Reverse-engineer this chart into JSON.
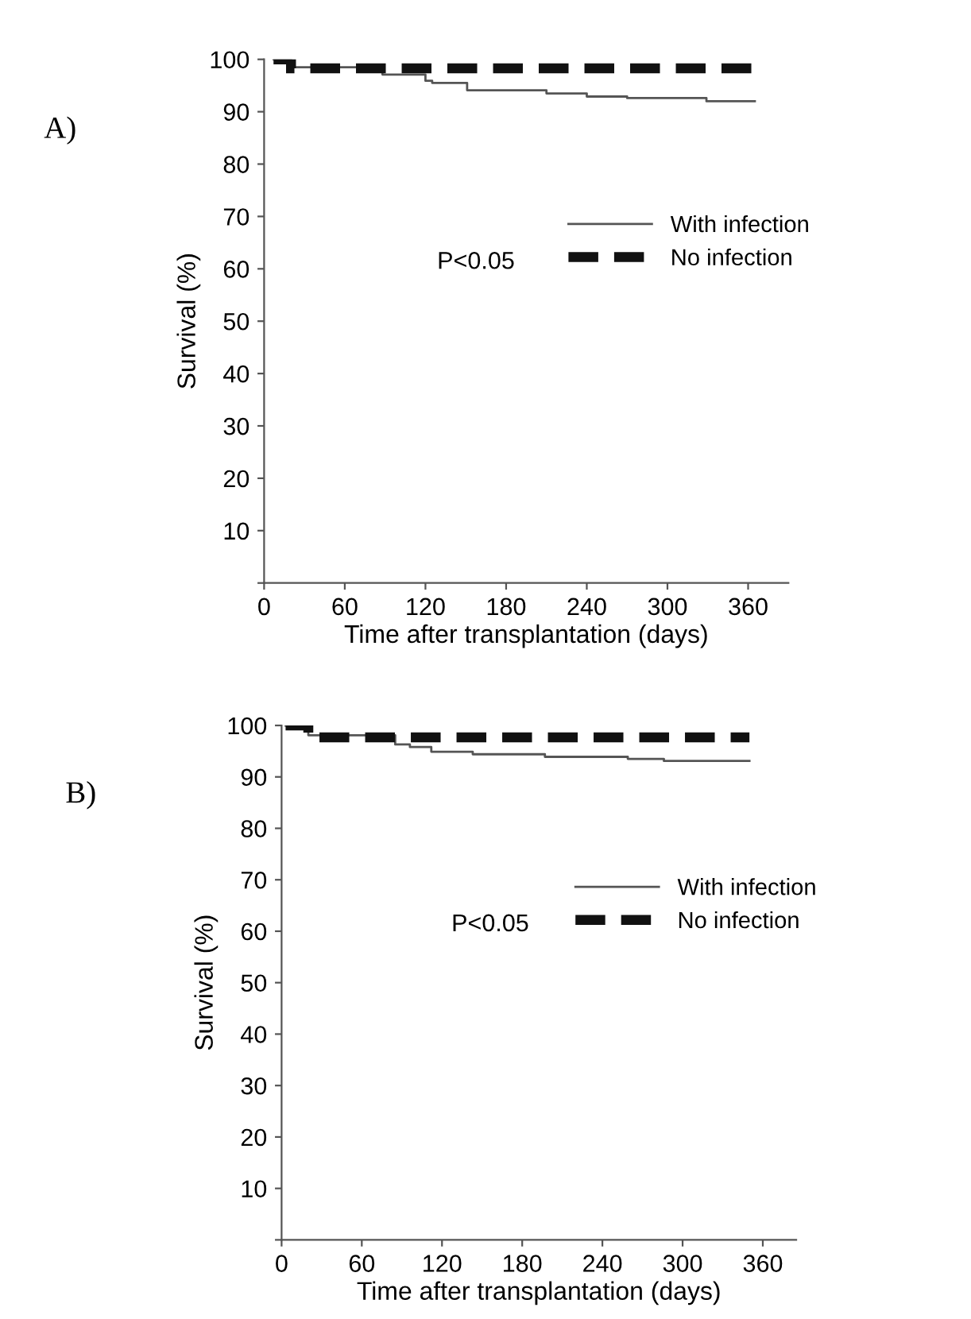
{
  "chart_data": [
    {
      "type": "step",
      "xlabel": "Time after transplantation (days)",
      "ylabel": "Survival (%)",
      "annotations": [
        "P<0.05",
        "A)"
      ],
      "xlim": [
        0,
        390
      ],
      "xticks": [
        0,
        60,
        120,
        180,
        240,
        300,
        360
      ],
      "ylim": [
        0,
        100
      ],
      "yticks": [
        {
          "value": 0,
          "label": null
        },
        10,
        20,
        30,
        40,
        50,
        60,
        70,
        80,
        90,
        100
      ],
      "legend": "right",
      "grid": false,
      "marker": "none",
      "series": [
        {
          "name": "With infection",
          "color": "#555555",
          "line_style": "solid",
          "x": [
            7,
            20,
            70,
            88,
            120,
            125,
            151,
            210,
            240,
            270,
            329,
            365
          ],
          "values": [
            100,
            98.5,
            98.0,
            97.1,
            95.9,
            95.5,
            94.1,
            93.5,
            92.9,
            92.6,
            92.0,
            92.0
          ]
        },
        {
          "name": "No infection",
          "color": "#111111",
          "line_style": "dashed",
          "x": [
            7,
            20,
            365
          ],
          "values": [
            100,
            98.3,
            98.3
          ]
        }
      ]
    },
    {
      "type": "step",
      "xlabel": "Time after transplantation (days)",
      "ylabel": "Survival (%)",
      "annotations": [
        "P<0.05",
        "B)"
      ],
      "xlim": [
        0,
        385
      ],
      "xticks": [
        0,
        60,
        120,
        180,
        240,
        300,
        360
      ],
      "ylim": [
        0,
        100
      ],
      "yticks": [
        {
          "value": 0,
          "label": null
        },
        10,
        20,
        30,
        40,
        50,
        60,
        70,
        80,
        90,
        100
      ],
      "legend": "right",
      "grid": false,
      "marker": "none",
      "series": [
        {
          "name": "With infection",
          "color": "#555555",
          "line_style": "solid",
          "x": [
            3,
            20,
            85,
            96,
            112,
            143,
            197,
            259,
            286,
            350
          ],
          "values": [
            100,
            98.1,
            96.3,
            95.8,
            94.9,
            94.4,
            93.9,
            93.5,
            93.1,
            93.1
          ]
        },
        {
          "name": "No infection",
          "color": "#111111",
          "line_style": "dashed",
          "x": [
            3,
            20,
            350
          ],
          "values": [
            100,
            97.7,
            97.7
          ]
        }
      ]
    }
  ]
}
